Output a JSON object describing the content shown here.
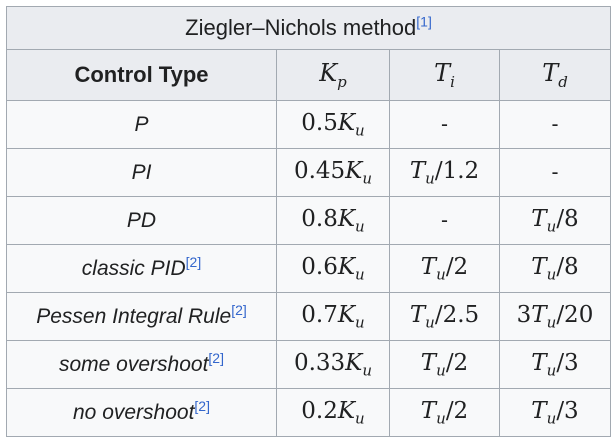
{
  "table": {
    "caption": "Ziegler–Nichols method",
    "caption_ref": "[1]",
    "headers": {
      "control_type": "Control Type",
      "kp": {
        "main": "K",
        "sub": "p"
      },
      "ti": {
        "main": "T",
        "sub": "i"
      },
      "td": {
        "main": "T",
        "sub": "d"
      }
    },
    "rows": [
      {
        "type": "P",
        "ref": "",
        "kp": {
          "coef": "0.5",
          "main": "K",
          "sub": "u",
          "tail": ""
        },
        "ti": {
          "dash": "-"
        },
        "td": {
          "dash": "-"
        }
      },
      {
        "type": "PI",
        "ref": "",
        "kp": {
          "coef": "0.45",
          "main": "K",
          "sub": "u",
          "tail": ""
        },
        "ti": {
          "coef": "",
          "main": "T",
          "sub": "u",
          "tail": "/1.2"
        },
        "td": {
          "dash": "-"
        }
      },
      {
        "type": "PD",
        "ref": "",
        "kp": {
          "coef": "0.8",
          "main": "K",
          "sub": "u",
          "tail": ""
        },
        "ti": {
          "dash": "-"
        },
        "td": {
          "coef": "",
          "main": "T",
          "sub": "u",
          "tail": "/8"
        }
      },
      {
        "type": "classic PID",
        "ref": "[2]",
        "kp": {
          "coef": "0.6",
          "main": "K",
          "sub": "u",
          "tail": ""
        },
        "ti": {
          "coef": "",
          "main": "T",
          "sub": "u",
          "tail": "/2"
        },
        "td": {
          "coef": "",
          "main": "T",
          "sub": "u",
          "tail": "/8"
        }
      },
      {
        "type": "Pessen Integral Rule",
        "ref": "[2]",
        "kp": {
          "coef": "0.7",
          "main": "K",
          "sub": "u",
          "tail": ""
        },
        "ti": {
          "coef": "",
          "main": "T",
          "sub": "u",
          "tail": "/2.5"
        },
        "td": {
          "coef": "3",
          "main": "T",
          "sub": "u",
          "tail": "/20"
        }
      },
      {
        "type": "some overshoot",
        "ref": "[2]",
        "kp": {
          "coef": "0.33",
          "main": "K",
          "sub": "u",
          "tail": ""
        },
        "ti": {
          "coef": "",
          "main": "T",
          "sub": "u",
          "tail": "/2"
        },
        "td": {
          "coef": "",
          "main": "T",
          "sub": "u",
          "tail": "/3"
        }
      },
      {
        "type": "no overshoot",
        "ref": "[2]",
        "kp": {
          "coef": "0.2",
          "main": "K",
          "sub": "u",
          "tail": ""
        },
        "ti": {
          "coef": "",
          "main": "T",
          "sub": "u",
          "tail": "/2"
        },
        "td": {
          "coef": "",
          "main": "T",
          "sub": "u",
          "tail": "/3"
        }
      }
    ]
  },
  "colors": {
    "header_bg": "#eaecf0",
    "cell_bg": "#f8f9fa",
    "border": "#a2a9b1",
    "text": "#202122",
    "link": "#3366cc"
  }
}
